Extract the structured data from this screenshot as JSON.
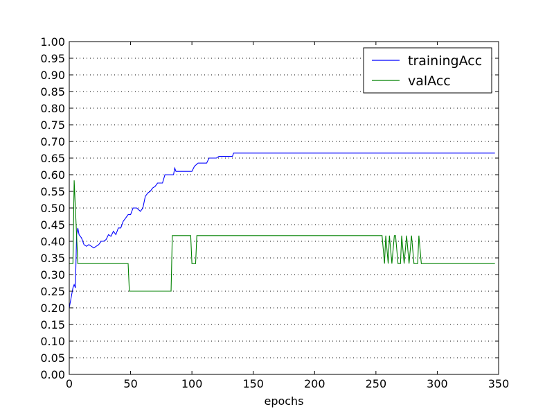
{
  "chart_data": {
    "type": "line",
    "title": "",
    "xlabel": "epochs",
    "ylabel": "",
    "xlim": [
      0,
      350
    ],
    "ylim": [
      0,
      1
    ],
    "xticks": [
      "0",
      "50",
      "100",
      "150",
      "200",
      "250",
      "300",
      "350"
    ],
    "yticks": [
      "0.00",
      "0.05",
      "0.10",
      "0.15",
      "0.20",
      "0.25",
      "0.30",
      "0.35",
      "0.40",
      "0.45",
      "0.50",
      "0.55",
      "0.60",
      "0.65",
      "0.70",
      "0.75",
      "0.80",
      "0.85",
      "0.90",
      "0.95",
      "1.00"
    ],
    "grid": "horizontal-dotted",
    "legend": {
      "placement": "top-right",
      "entries": [
        "trainingAcc",
        "valAcc"
      ]
    },
    "series": [
      {
        "name": "trainingAcc",
        "color": "#0000ff",
        "points": [
          [
            0,
            0.2
          ],
          [
            2,
            0.24
          ],
          [
            3,
            0.26
          ],
          [
            4,
            0.27
          ],
          [
            5,
            0.26
          ],
          [
            6,
            0.42
          ],
          [
            7,
            0.44
          ],
          [
            8,
            0.42
          ],
          [
            10,
            0.41
          ],
          [
            12,
            0.39
          ],
          [
            14,
            0.385
          ],
          [
            16,
            0.39
          ],
          [
            18,
            0.385
          ],
          [
            20,
            0.38
          ],
          [
            22,
            0.385
          ],
          [
            24,
            0.39
          ],
          [
            26,
            0.4
          ],
          [
            28,
            0.4
          ],
          [
            30,
            0.405
          ],
          [
            32,
            0.42
          ],
          [
            34,
            0.415
          ],
          [
            36,
            0.43
          ],
          [
            38,
            0.42
          ],
          [
            40,
            0.44
          ],
          [
            42,
            0.44
          ],
          [
            44,
            0.46
          ],
          [
            46,
            0.47
          ],
          [
            48,
            0.48
          ],
          [
            50,
            0.48
          ],
          [
            52,
            0.5
          ],
          [
            55,
            0.5
          ],
          [
            58,
            0.49
          ],
          [
            60,
            0.5
          ],
          [
            62,
            0.535
          ],
          [
            64,
            0.545
          ],
          [
            66,
            0.55
          ],
          [
            68,
            0.56
          ],
          [
            70,
            0.565
          ],
          [
            72,
            0.575
          ],
          [
            76,
            0.575
          ],
          [
            78,
            0.6
          ],
          [
            85,
            0.6
          ],
          [
            86,
            0.62
          ],
          [
            87,
            0.61
          ],
          [
            100,
            0.61
          ],
          [
            102,
            0.625
          ],
          [
            105,
            0.635
          ],
          [
            112,
            0.635
          ],
          [
            114,
            0.65
          ],
          [
            120,
            0.65
          ],
          [
            122,
            0.655
          ],
          [
            133,
            0.655
          ],
          [
            134,
            0.665
          ],
          [
            347,
            0.665
          ]
        ]
      },
      {
        "name": "valAcc",
        "color": "#008000",
        "points": [
          [
            0,
            0.333
          ],
          [
            3,
            0.333
          ],
          [
            4,
            0.583
          ],
          [
            5,
            0.5
          ],
          [
            7,
            0.333
          ],
          [
            48,
            0.333
          ],
          [
            49,
            0.25
          ],
          [
            83,
            0.25
          ],
          [
            84,
            0.417
          ],
          [
            99,
            0.417
          ],
          [
            100,
            0.333
          ],
          [
            103,
            0.333
          ],
          [
            104,
            0.417
          ],
          [
            255,
            0.417
          ],
          [
            257,
            0.333
          ],
          [
            258,
            0.417
          ],
          [
            260,
            0.333
          ],
          [
            261,
            0.417
          ],
          [
            263,
            0.333
          ],
          [
            265,
            0.417
          ],
          [
            266,
            0.417
          ],
          [
            268,
            0.333
          ],
          [
            270,
            0.333
          ],
          [
            271,
            0.417
          ],
          [
            273,
            0.333
          ],
          [
            275,
            0.417
          ],
          [
            277,
            0.333
          ],
          [
            279,
            0.417
          ],
          [
            281,
            0.333
          ],
          [
            284,
            0.333
          ],
          [
            285,
            0.417
          ],
          [
            287,
            0.333
          ],
          [
            347,
            0.333
          ]
        ]
      }
    ]
  }
}
